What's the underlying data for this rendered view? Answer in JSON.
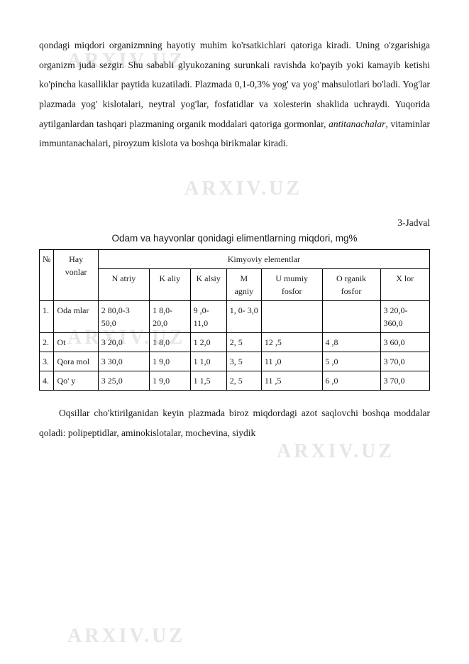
{
  "watermark": "ARXIV.UZ",
  "paragraph1_parts": {
    "before_italic": "qondagi miqdori organizmning hayotiy muhim ko'rsatkichlari qatoriga kiradi. Uning o'zgarishiga organizm juda sezgir. Shu sababli glyukozaning surunkali ravishda ko'payib yoki kamayib ketishi ko'pincha kasalliklar paytida kuzatiladi. Plazmada 0,1-0,3% yog' va yog' mahsulotlari bo'ladi. Yog'lar plazmada yog' kislotalari, neytral yog'lar, fosfatidlar va xolesterin shaklida uchraydi. Yuqorida aytilganlardan tashqari plazmaning organik moddalari qatoriga gormonlar, ",
    "italic": "antitanachalar",
    "after_italic": ", vitaminlar immuntanachalari, piroyzum kislota va boshqa birikmalar kiradi."
  },
  "table_caption": "3-Jadval",
  "table_title": "Odam va hayvonlar qonidagi elimentlarning miqdori, mg%",
  "table": {
    "col_no": "№",
    "col_hay": "Hay vonlar",
    "group_header": "Kimyoviy elementlar",
    "headers": [
      "N atriy",
      "K aliy",
      "K alsiy",
      "M agniy",
      "U mumiy fosfor",
      "O rganik fosfor",
      "X lor"
    ],
    "rows": [
      {
        "no": "1.",
        "name": "Oda mlar",
        "cells": [
          "2 80,0-3 50,0",
          "1 8,0-20,0",
          "9 ,0-11,0",
          "1, 0- 3,0",
          "",
          "",
          "3 20,0-360,0"
        ]
      },
      {
        "no": "2.",
        "name": "Ot",
        "cells": [
          "3 20,0",
          "1 8,0",
          "1 2,0",
          "2, 5",
          "12 ,5",
          "4 ,8",
          "3 60,0"
        ]
      },
      {
        "no": "3.",
        "name": "Qora mol",
        "cells": [
          "3 30,0",
          "1 9,0",
          "1 1,0",
          "3, 5",
          "11 ,0",
          "5 ,0",
          "3 70,0"
        ]
      },
      {
        "no": "4.",
        "name": "Qo' y",
        "cells": [
          "3 25,0",
          "1 9,0",
          "1 1,5",
          "2, 5",
          "11 ,5",
          "6 ,0",
          "3 70,0"
        ]
      }
    ]
  },
  "paragraph2": "Oqsillar cho'ktirilganidan keyin plazmada biroz miqdordagi azot saqlovchi boshqa moddalar qoladi: polipeptidlar, aminokislotalar, mochevina, siydik"
}
